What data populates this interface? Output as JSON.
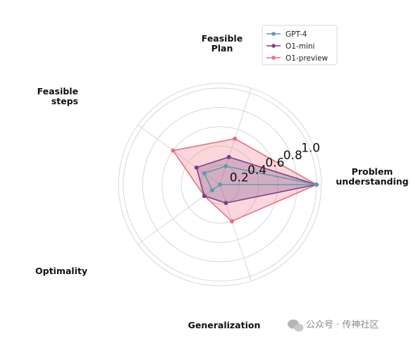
{
  "chart_data": {
    "type": "radar",
    "axes": [
      "Problem\nunderstanding",
      "Feasible\nPlan",
      "Feasible\nsteps",
      "Optimality",
      "Generalization"
    ],
    "rticks": [
      0.2,
      0.4,
      0.6,
      0.8,
      1.0
    ],
    "rtick_labels": [
      "0.2",
      "0.4",
      "0.6",
      "0.8",
      "1.0"
    ],
    "rlim": [
      0,
      1.05
    ],
    "grid": true,
    "legend_position": "top-right",
    "series": [
      {
        "name": "O1-preview",
        "color": "#e8707e",
        "values": [
          1.0,
          0.5,
          0.6,
          0.2,
          0.4
        ],
        "filled": true
      },
      {
        "name": "O1-mini",
        "color": "#7b3f86",
        "values": [
          1.0,
          0.3,
          0.3,
          0.2,
          0.2
        ],
        "filled": true
      },
      {
        "name": "GPT-4",
        "color": "#5a9ea8",
        "values": [
          1.0,
          0.2,
          0.2,
          0.1,
          0.0
        ],
        "filled": false
      }
    ]
  },
  "legend_order": [
    "GPT-4",
    "O1-mini",
    "O1-preview"
  ],
  "watermark": "公众号 · 传神社区"
}
